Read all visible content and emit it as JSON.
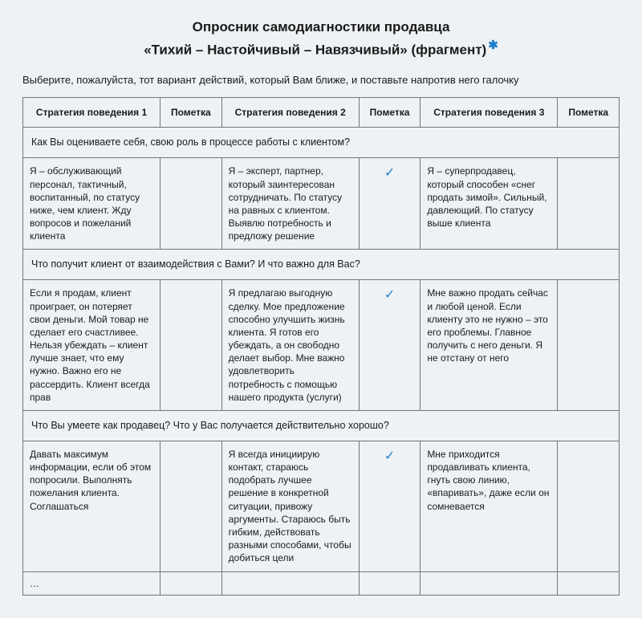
{
  "colors": {
    "background": "#eef2f5",
    "border": "#6f767b",
    "text": "#1a1a1a",
    "accent": "#1f7fc9"
  },
  "title": {
    "line1": "Опросник самодиагностики продавца",
    "line2": "«Тихий – Настойчивый – Навязчивый» (фрагмент)"
  },
  "instruction": "Выберите, пожалуйста, тот вариант действий, который Вам ближе, и поставьте напротив него галочку",
  "headers": {
    "strategy1": "Стратегия поведения 1",
    "mark1": "Пометка",
    "strategy2": "Стратегия поведения 2",
    "mark2": "Пометка",
    "strategy3": "Стратегия поведения 3",
    "mark3": "Пометка"
  },
  "check_glyph": "✓",
  "sections": [
    {
      "question": "Как Вы оцениваете себя, свою роль в процессе работы с клиентом?",
      "s1": "Я – обслуживающий персонал, тактичный, воспитанный, по статусу ниже, чем клиент. Жду вопросов и пожеланий клиента",
      "m1": "",
      "s2": "Я – эксперт, партнер, который заинтересован сотрудничать. По статусу на равных с клиентом. Выявлю потребность и предложу решение",
      "m2": "✓",
      "s3": "Я – суперпродавец, который способен «снег продать зимой». Сильный, давлеющий. По статусу выше клиента",
      "m3": ""
    },
    {
      "question": "Что получит клиент от взаимодействия с Вами? И что важно для Вас?",
      "s1": "Если я продам, клиент проиграет, он потеряет свои деньги. Мой товар не сделает его счастливее. Нельзя убеждать – клиент лучше знает, что ему нужно. Важно его не рассердить. Клиент всегда прав",
      "m1": "",
      "s2": "Я предлагаю выгодную сделку. Мое предложение способно улучшить жизнь клиента. Я готов его убеждать, а он свободно делает выбор. Мне важно удовлетворить потребность с помощью нашего продукта (услуги)",
      "m2": "✓",
      "s3": "Мне важно продать сейчас и любой ценой. Если клиенту это не нужно – это его проблемы. Главное получить с него деньги. Я не отстану от него",
      "m3": ""
    },
    {
      "question": "Что Вы умеете как продавец? Что у Вас получается действительно хорошо?",
      "s1": "Давать максимум информации, если об этом попросили. Выполнять пожелания клиента. Соглашаться",
      "m1": "",
      "s2": "Я всегда инициирую контакт, стараюсь подобрать лучшее решение в конкретной ситуации, привожу аргументы. Стараюсь быть гибким, действовать разными способами, чтобы добиться цели",
      "m2": "✓",
      "s3": "Мне приходится продавливать клиента, гнуть свою линию, «впаривать», даже если он сомневается",
      "m3": ""
    }
  ],
  "ellipsis": "…"
}
